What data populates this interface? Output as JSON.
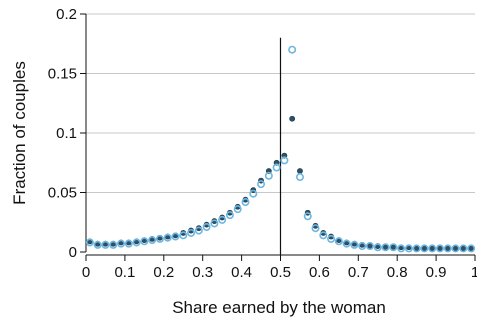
{
  "chart_data": {
    "type": "scatter",
    "title": "",
    "xlabel": "Share earned by the woman",
    "ylabel": "Fraction of couples",
    "xlim": [
      0,
      1
    ],
    "ylim": [
      0,
      0.2
    ],
    "xticks": [
      "0",
      "0.1",
      "0.2",
      "0.3",
      "0.4",
      "0.5",
      "0.6",
      "0.7",
      "0.8",
      "0.9",
      "1"
    ],
    "yticks": [
      "0",
      "0.05",
      "0.1",
      "0.15",
      "0.2"
    ],
    "grid": "horizontal",
    "reference_line_x": 0.5,
    "colors": {
      "series_a": "#2e4f66",
      "series_b": "#6cb6e0",
      "grid": "#c8c8c8",
      "axis": "#111111"
    },
    "series": [
      {
        "marker": "filled-dot",
        "color": "#2e4f66",
        "x": [
          0.01,
          0.03,
          0.05,
          0.07,
          0.09,
          0.11,
          0.13,
          0.15,
          0.17,
          0.19,
          0.21,
          0.23,
          0.25,
          0.27,
          0.29,
          0.31,
          0.33,
          0.35,
          0.37,
          0.39,
          0.41,
          0.43,
          0.45,
          0.47,
          0.49,
          0.51,
          0.53,
          0.55,
          0.57,
          0.59,
          0.61,
          0.63,
          0.65,
          0.67,
          0.69,
          0.71,
          0.73,
          0.75,
          0.77,
          0.79,
          0.81,
          0.83,
          0.85,
          0.87,
          0.89,
          0.91,
          0.93,
          0.95,
          0.97,
          0.99
        ],
        "values": [
          0.009,
          0.007,
          0.007,
          0.007,
          0.008,
          0.008,
          0.009,
          0.01,
          0.011,
          0.012,
          0.013,
          0.014,
          0.016,
          0.018,
          0.02,
          0.023,
          0.026,
          0.029,
          0.033,
          0.038,
          0.044,
          0.052,
          0.06,
          0.068,
          0.075,
          0.081,
          0.112,
          0.068,
          0.033,
          0.022,
          0.016,
          0.013,
          0.01,
          0.008,
          0.007,
          0.006,
          0.005,
          0.005,
          0.004,
          0.004,
          0.004,
          0.004,
          0.003,
          0.003,
          0.003,
          0.003,
          0.003,
          0.003,
          0.003,
          0.003
        ],
        "values_note": ""
      },
      {
        "marker": "open-circle",
        "color": "#6cb6e0",
        "x": [
          0.01,
          0.03,
          0.05,
          0.07,
          0.09,
          0.11,
          0.13,
          0.15,
          0.17,
          0.19,
          0.21,
          0.23,
          0.25,
          0.27,
          0.29,
          0.31,
          0.33,
          0.35,
          0.37,
          0.39,
          0.41,
          0.43,
          0.45,
          0.47,
          0.49,
          0.51,
          0.53,
          0.55,
          0.57,
          0.59,
          0.61,
          0.63,
          0.65,
          0.67,
          0.69,
          0.71,
          0.73,
          0.75,
          0.77,
          0.79,
          0.81,
          0.83,
          0.85,
          0.87,
          0.89,
          0.91,
          0.93,
          0.95,
          0.97,
          0.99
        ],
        "values": [
          0.008,
          0.006,
          0.006,
          0.006,
          0.007,
          0.007,
          0.008,
          0.009,
          0.01,
          0.011,
          0.012,
          0.013,
          0.014,
          0.016,
          0.018,
          0.021,
          0.024,
          0.027,
          0.031,
          0.036,
          0.042,
          0.049,
          0.057,
          0.064,
          0.071,
          0.077,
          0.17,
          0.063,
          0.03,
          0.02,
          0.014,
          0.011,
          0.009,
          0.007,
          0.006,
          0.005,
          0.005,
          0.004,
          0.004,
          0.004,
          0.003,
          0.003,
          0.003,
          0.003,
          0.003,
          0.003,
          0.003,
          0.003,
          0.003,
          0.003
        ]
      }
    ]
  }
}
